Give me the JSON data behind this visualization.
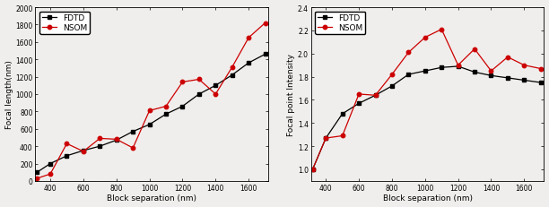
{
  "left": {
    "xlabel": "Block separation (nm)",
    "ylabel": "Focal length(nm)",
    "xlim": [
      310,
      1720
    ],
    "ylim": [
      0,
      2000
    ],
    "xticks": [
      400,
      600,
      800,
      1000,
      1200,
      1400,
      1600
    ],
    "yticks": [
      0,
      200,
      400,
      600,
      800,
      1000,
      1200,
      1400,
      1600,
      1800,
      2000
    ],
    "FDTD_x": [
      320,
      400,
      500,
      600,
      700,
      800,
      900,
      1000,
      1100,
      1200,
      1300,
      1400,
      1500,
      1600,
      1700
    ],
    "FDTD_y": [
      100,
      200,
      290,
      350,
      400,
      470,
      570,
      650,
      770,
      860,
      1000,
      1100,
      1220,
      1360,
      1460
    ],
    "NSOM_x": [
      320,
      400,
      500,
      600,
      700,
      800,
      900,
      1000,
      1100,
      1200,
      1300,
      1400,
      1500,
      1600,
      1700
    ],
    "NSOM_y": [
      30,
      80,
      430,
      340,
      490,
      480,
      380,
      810,
      860,
      1140,
      1170,
      1000,
      1310,
      1650,
      1820
    ]
  },
  "right": {
    "xlabel": "Block separation (nm)",
    "ylabel": "Focal point Intensity",
    "xlim": [
      310,
      1720
    ],
    "ylim": [
      0.9,
      2.4
    ],
    "xticks": [
      400,
      600,
      800,
      1000,
      1200,
      1400,
      1600
    ],
    "yticks": [
      1.0,
      1.2,
      1.4,
      1.6,
      1.8,
      2.0,
      2.2,
      2.4
    ],
    "FDTD_x": [
      320,
      400,
      500,
      600,
      700,
      800,
      900,
      1000,
      1100,
      1200,
      1300,
      1400,
      1500,
      1600,
      1700
    ],
    "FDTD_y": [
      1.0,
      1.27,
      1.48,
      1.57,
      1.64,
      1.72,
      1.82,
      1.85,
      1.88,
      1.89,
      1.84,
      1.81,
      1.79,
      1.77,
      1.75
    ],
    "NSOM_x": [
      320,
      400,
      500,
      600,
      700,
      800,
      900,
      1000,
      1100,
      1200,
      1300,
      1400,
      1500,
      1600,
      1700
    ],
    "NSOM_y": [
      1.0,
      1.27,
      1.29,
      1.65,
      1.64,
      1.82,
      2.01,
      2.14,
      2.21,
      1.9,
      2.04,
      1.85,
      1.97,
      1.9,
      1.87
    ]
  },
  "fdtd_color": "#000000",
  "nsom_color": "#cc0000",
  "marker_fdtd": "s",
  "marker_nsom": "o",
  "linewidth": 0.9,
  "markersize": 3.2,
  "bg_color": "#f0eeec",
  "label_fontsize": 6.5,
  "tick_fontsize": 5.5,
  "legend_fontsize": 6.5
}
